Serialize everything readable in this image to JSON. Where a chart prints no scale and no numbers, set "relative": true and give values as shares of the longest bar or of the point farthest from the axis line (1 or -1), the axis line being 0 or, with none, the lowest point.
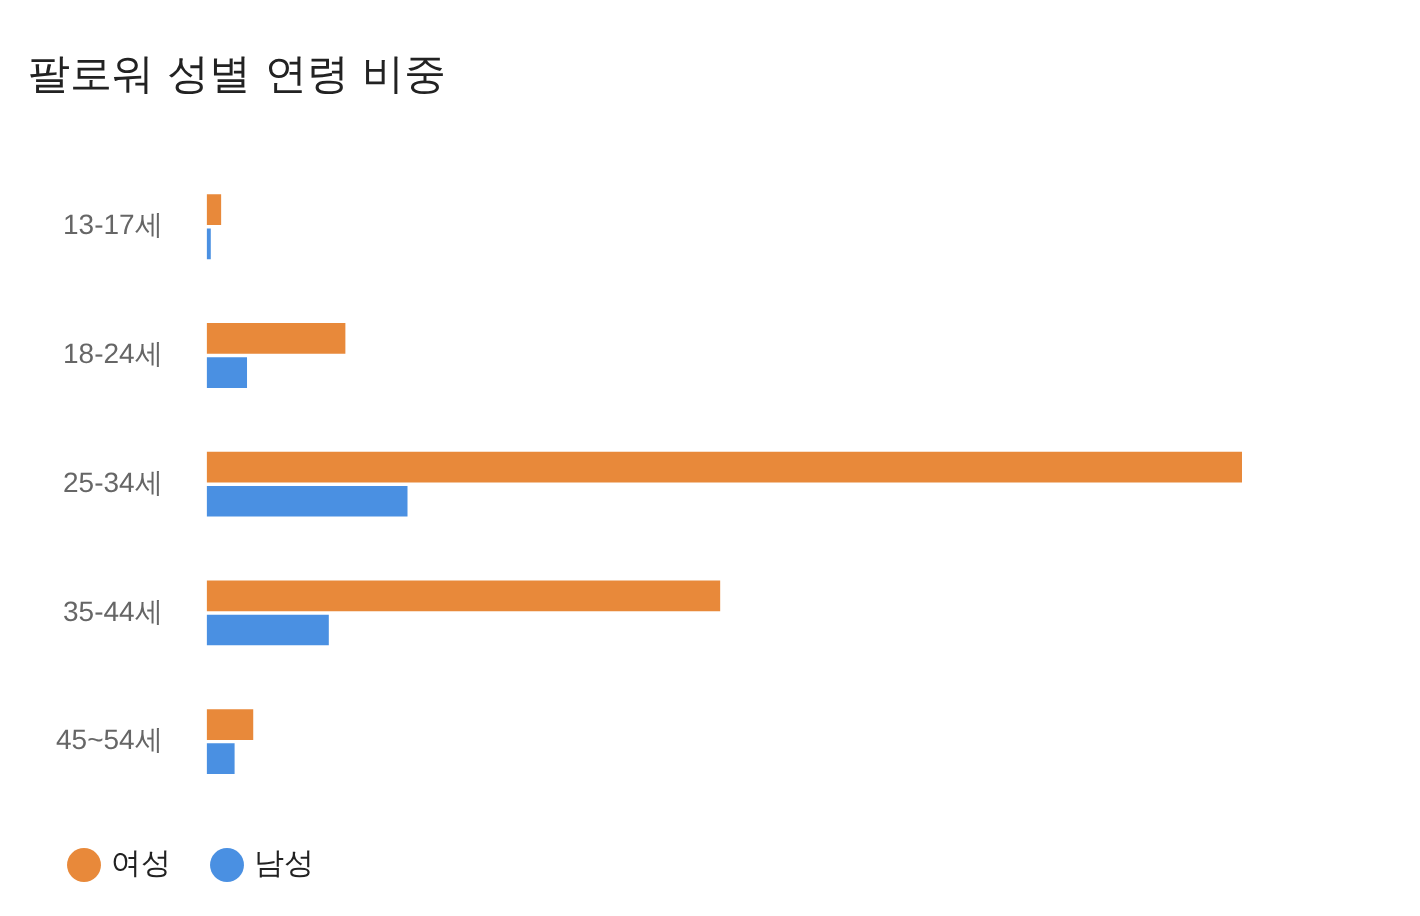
{
  "chart_data": {
    "type": "bar",
    "orientation": "horizontal",
    "relative": true,
    "title": "팔로워 성별 연령 비중",
    "categories": [
      "13-17세",
      "18-24세",
      "25-34세",
      "35-44세",
      "45~54세"
    ],
    "series": [
      {
        "name": "여성",
        "color": "#e8893a",
        "values": [
          0.014,
          0.134,
          1,
          0.496,
          0.045
        ]
      },
      {
        "name": "남성",
        "color": "#4a90e2",
        "values": [
          0.004,
          0.039,
          0.194,
          0.118,
          0.027
        ]
      }
    ],
    "legend": "bottom left",
    "marker": "circle"
  }
}
